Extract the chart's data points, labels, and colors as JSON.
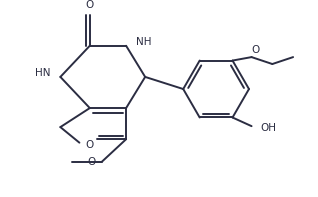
{
  "bg_color": "#ffffff",
  "line_color": "#2b2d42",
  "line_width": 1.4,
  "font_size": 7.5,
  "figsize": [
    3.18,
    1.97
  ],
  "dpi": 100,
  "xlim": [
    0,
    9.0
  ],
  "ylim": [
    0,
    5.5
  ]
}
